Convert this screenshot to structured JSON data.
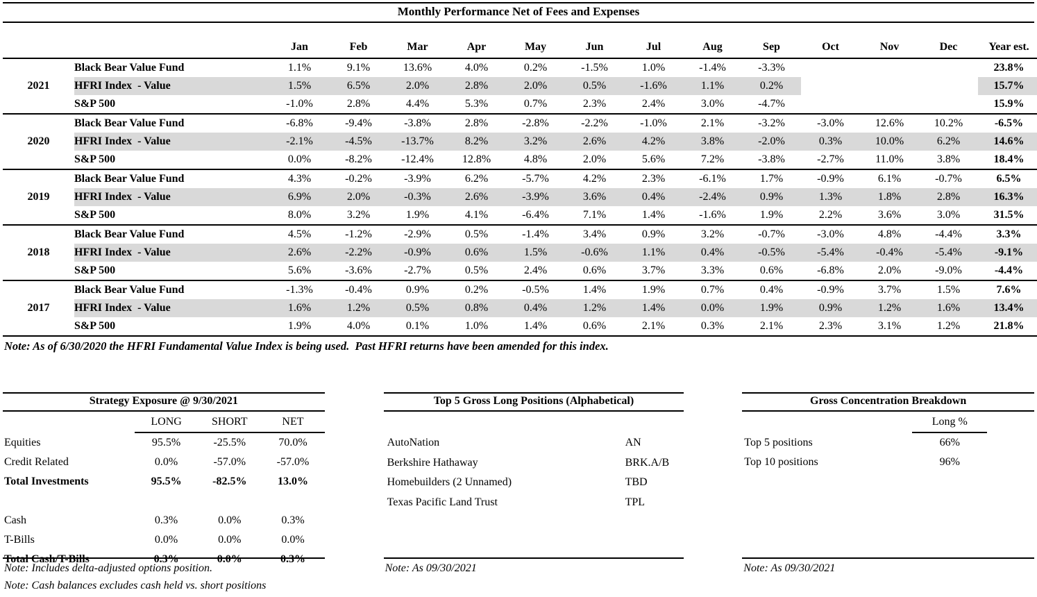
{
  "performance_table": {
    "title": "Monthly Performance Net of Fees and Expenses",
    "columns": [
      "Jan",
      "Feb",
      "Mar",
      "Apr",
      "May",
      "Jun",
      "Jul",
      "Aug",
      "Sep",
      "Oct",
      "Nov",
      "Dec",
      "Year est."
    ],
    "note": "Note: As of 6/30/2020 the HFRI Fundamental Value Index is being used.  Past HFRI returns have been amended for this index.",
    "year_groups": [
      {
        "year": "2021",
        "rows": [
          {
            "name": "Black Bear Value Fund",
            "shaded": false,
            "values": [
              "1.1%",
              "9.1%",
              "13.6%",
              "4.0%",
              "0.2%",
              "-1.5%",
              "1.0%",
              "-1.4%",
              "-3.3%",
              "",
              "",
              ""
            ],
            "year_est": "23.8%"
          },
          {
            "name": "HFRI Index  - Value",
            "shaded": true,
            "values": [
              "1.5%",
              "6.5%",
              "2.0%",
              "2.8%",
              "2.0%",
              "0.5%",
              "-1.6%",
              "1.1%",
              "0.2%",
              "",
              "",
              ""
            ],
            "year_est": "15.7%"
          },
          {
            "name": "S&P 500",
            "shaded": false,
            "values": [
              "-1.0%",
              "2.8%",
              "4.4%",
              "5.3%",
              "0.7%",
              "2.3%",
              "2.4%",
              "3.0%",
              "-4.7%",
              "",
              "",
              ""
            ],
            "year_est": "15.9%"
          }
        ]
      },
      {
        "year": "2020",
        "rows": [
          {
            "name": "Black Bear Value Fund",
            "shaded": false,
            "values": [
              "-6.8%",
              "-9.4%",
              "-3.8%",
              "2.8%",
              "-2.8%",
              "-2.2%",
              "-1.0%",
              "2.1%",
              "-3.2%",
              "-3.0%",
              "12.6%",
              "10.2%"
            ],
            "year_est": "-6.5%"
          },
          {
            "name": "HFRI Index  - Value",
            "shaded": true,
            "values": [
              "-2.1%",
              "-4.5%",
              "-13.7%",
              "8.2%",
              "3.2%",
              "2.6%",
              "4.2%",
              "3.8%",
              "-2.0%",
              "0.3%",
              "10.0%",
              "6.2%"
            ],
            "year_est": "14.6%"
          },
          {
            "name": "S&P 500",
            "shaded": false,
            "values": [
              "0.0%",
              "-8.2%",
              "-12.4%",
              "12.8%",
              "4.8%",
              "2.0%",
              "5.6%",
              "7.2%",
              "-3.8%",
              "-2.7%",
              "11.0%",
              "3.8%"
            ],
            "year_est": "18.4%"
          }
        ]
      },
      {
        "year": "2019",
        "rows": [
          {
            "name": "Black Bear Value Fund",
            "shaded": false,
            "values": [
              "4.3%",
              "-0.2%",
              "-3.9%",
              "6.2%",
              "-5.7%",
              "4.2%",
              "2.3%",
              "-6.1%",
              "1.7%",
              "-0.9%",
              "6.1%",
              "-0.7%"
            ],
            "year_est": "6.5%"
          },
          {
            "name": "HFRI Index  - Value",
            "shaded": true,
            "values": [
              "6.9%",
              "2.0%",
              "-0.3%",
              "2.6%",
              "-3.9%",
              "3.6%",
              "0.4%",
              "-2.4%",
              "0.9%",
              "1.3%",
              "1.8%",
              "2.8%"
            ],
            "year_est": "16.3%"
          },
          {
            "name": "S&P 500",
            "shaded": false,
            "values": [
              "8.0%",
              "3.2%",
              "1.9%",
              "4.1%",
              "-6.4%",
              "7.1%",
              "1.4%",
              "-1.6%",
              "1.9%",
              "2.2%",
              "3.6%",
              "3.0%"
            ],
            "year_est": "31.5%"
          }
        ]
      },
      {
        "year": "2018",
        "rows": [
          {
            "name": "Black Bear Value Fund",
            "shaded": false,
            "values": [
              "4.5%",
              "-1.2%",
              "-2.9%",
              "0.5%",
              "-1.4%",
              "3.4%",
              "0.9%",
              "3.2%",
              "-0.7%",
              "-3.0%",
              "4.8%",
              "-4.4%"
            ],
            "year_est": "3.3%"
          },
          {
            "name": "HFRI Index  - Value",
            "shaded": true,
            "values": [
              "2.6%",
              "-2.2%",
              "-0.9%",
              "0.6%",
              "1.5%",
              "-0.6%",
              "1.1%",
              "0.4%",
              "-0.5%",
              "-5.4%",
              "-0.4%",
              "-5.4%"
            ],
            "year_est": "-9.1%"
          },
          {
            "name": "S&P 500",
            "shaded": false,
            "values": [
              "5.6%",
              "-3.6%",
              "-2.7%",
              "0.5%",
              "2.4%",
              "0.6%",
              "3.7%",
              "3.3%",
              "0.6%",
              "-6.8%",
              "2.0%",
              "-9.0%"
            ],
            "year_est": "-4.4%"
          }
        ]
      },
      {
        "year": "2017",
        "rows": [
          {
            "name": "Black Bear Value Fund",
            "shaded": false,
            "values": [
              "-1.3%",
              "-0.4%",
              "0.9%",
              "0.2%",
              "-0.5%",
              "1.4%",
              "1.9%",
              "0.7%",
              "0.4%",
              "-0.9%",
              "3.7%",
              "1.5%"
            ],
            "year_est": "7.6%"
          },
          {
            "name": "HFRI Index  - Value",
            "shaded": true,
            "values": [
              "1.6%",
              "1.2%",
              "0.5%",
              "0.8%",
              "0.4%",
              "1.2%",
              "1.4%",
              "0.0%",
              "1.9%",
              "0.9%",
              "1.2%",
              "1.6%"
            ],
            "year_est": "13.4%"
          },
          {
            "name": "S&P 500",
            "shaded": false,
            "values": [
              "1.9%",
              "4.0%",
              "0.1%",
              "1.0%",
              "1.4%",
              "0.6%",
              "2.1%",
              "0.3%",
              "2.1%",
              "2.3%",
              "3.1%",
              "1.2%"
            ],
            "year_est": "21.8%"
          }
        ]
      }
    ]
  },
  "strategy_exposure": {
    "title": "Strategy Exposure @ 9/30/2021",
    "columns": [
      "LONG",
      "SHORT",
      "NET"
    ],
    "rows": [
      {
        "label": "Equities",
        "values": [
          "95.5%",
          "-25.5%",
          "70.0%"
        ],
        "bold": false
      },
      {
        "label": "Credit Related",
        "values": [
          "0.0%",
          "-57.0%",
          "-57.0%"
        ],
        "bold": false
      },
      {
        "label": "Total Investments",
        "values": [
          "95.5%",
          "-82.5%",
          "13.0%"
        ],
        "bold": true
      },
      {
        "label": "",
        "values": [
          "",
          "",
          ""
        ],
        "bold": false
      },
      {
        "label": "Cash",
        "values": [
          "0.3%",
          "0.0%",
          "0.3%"
        ],
        "bold": false
      },
      {
        "label": "T-Bills",
        "values": [
          "0.0%",
          "0.0%",
          "0.0%"
        ],
        "bold": false
      },
      {
        "label": "Total Cash/T-Bills",
        "values": [
          "0.3%",
          "0.0%",
          "0.3%"
        ],
        "bold": true
      }
    ],
    "notes": [
      "Note: Includes delta-adjusted options position.",
      "Note: Cash balances excludes cash held vs. short positions"
    ]
  },
  "top_positions": {
    "title": "Top 5 Gross Long Positions (Alphabetical)",
    "rows": [
      {
        "name": "AutoNation",
        "ticker": "AN"
      },
      {
        "name": "Berkshire Hathaway",
        "ticker": "BRK.A/B"
      },
      {
        "name": "Homebuilders (2 Unnamed)",
        "ticker": "TBD"
      },
      {
        "name": "Texas Pacific Land Trust",
        "ticker": "TPL"
      }
    ],
    "note": "Note: As 09/30/2021"
  },
  "concentration": {
    "title": "Gross Concentration Breakdown",
    "column_header": "Long %",
    "rows": [
      {
        "label": "Top 5 positions",
        "value": "66%"
      },
      {
        "label": "Top 10 positions",
        "value": "96%"
      }
    ],
    "note": "Note: As 09/30/2021"
  },
  "colors": {
    "row_shading": "#d9d9d9",
    "rule": "#000000",
    "background": "#ffffff"
  }
}
